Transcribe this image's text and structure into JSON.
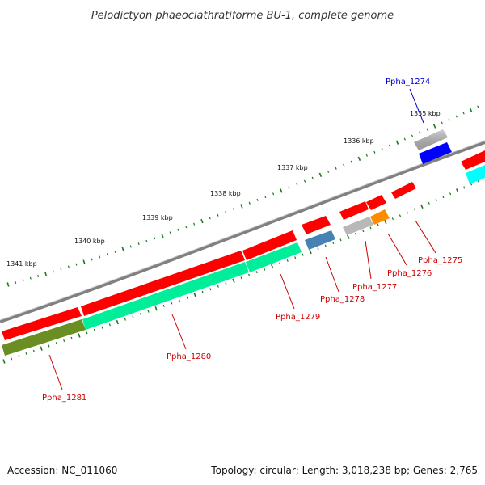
{
  "title": "Pelodictyon phaeoclathratiforme BU-1, complete genome",
  "footer": {
    "accession": "Accession: NC_011060",
    "summary": "Topology: circular; Length: 3,018,238 bp; Genes: 2,765"
  },
  "scale_labels": [
    "1335 kbp",
    "1336 kbp",
    "1337 kbp",
    "1338 kbp",
    "1339 kbp",
    "1340 kbp",
    "1341 kbp"
  ],
  "gene_labels": [
    {
      "text": "Ppha_1274",
      "color": "#0000cc"
    },
    {
      "text": "Ppha_1275",
      "color": "#cc0000"
    },
    {
      "text": "Ppha_1276",
      "color": "#cc0000"
    },
    {
      "text": "Ppha_1277",
      "color": "#cc0000"
    },
    {
      "text": "Ppha_1278",
      "color": "#cc0000"
    },
    {
      "text": "Ppha_1279",
      "color": "#cc0000"
    },
    {
      "text": "Ppha_1280",
      "color": "#cc0000"
    },
    {
      "text": "Ppha_1281",
      "color": "#cc0000"
    }
  ],
  "colors": {
    "red": "#ff0000",
    "blue": "#0000ff",
    "cyan": "#00ffff",
    "green": "#00ee99",
    "olive": "#6b8e23",
    "steel": "#4682b4",
    "orange": "#ff8c00",
    "gray": "#b8b8b8",
    "backbone": "#808080",
    "tick": "#1a7a1a"
  }
}
